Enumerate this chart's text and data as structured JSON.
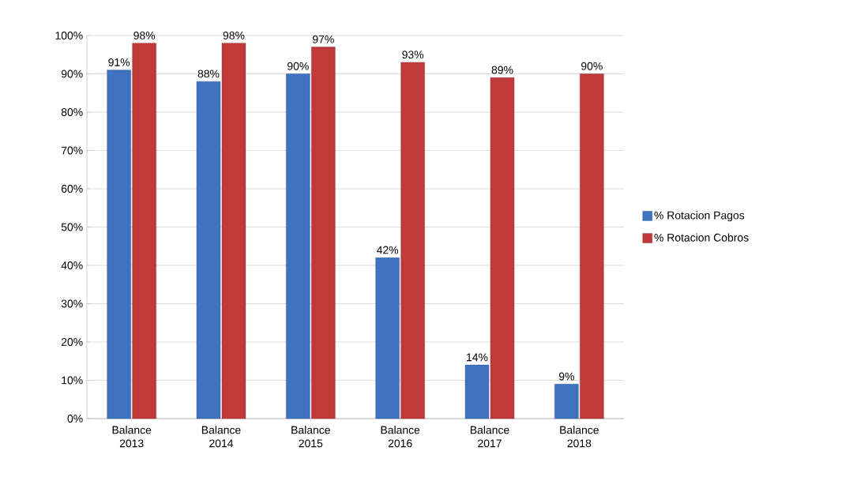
{
  "chart_data": {
    "type": "bar",
    "categories": [
      "Balance 2013",
      "Balance 2014",
      "Balance 2015",
      "Balance 2016",
      "Balance 2017",
      "Balance 2018"
    ],
    "series": [
      {
        "name": "% Rotacion  Pagos",
        "color": "#3f73c0",
        "values": [
          91,
          88,
          90,
          42,
          14,
          9
        ],
        "value_labels": [
          "91%",
          "88%",
          "90%",
          "42%",
          "14%",
          "9%"
        ]
      },
      {
        "name": "% Rotacion Cobros",
        "color": "#c0393b",
        "values": [
          98,
          98,
          97,
          93,
          89,
          90
        ],
        "value_labels": [
          "98%",
          "98%",
          "97%",
          "93%",
          "89%",
          "90%"
        ]
      }
    ],
    "ylim": [
      0,
      100
    ],
    "yticks": [
      {
        "value": 0,
        "label": "0%"
      },
      {
        "value": 10,
        "label": "10%"
      },
      {
        "value": 20,
        "label": "20%"
      },
      {
        "value": 30,
        "label": "30%"
      },
      {
        "value": 40,
        "label": "40%"
      },
      {
        "value": 50,
        "label": "50%"
      },
      {
        "value": 60,
        "label": "60%"
      },
      {
        "value": 70,
        "label": "70%"
      },
      {
        "value": 80,
        "label": "80%"
      },
      {
        "value": 90,
        "label": "90%"
      },
      {
        "value": 100,
        "label": "100%"
      }
    ],
    "grid": "y",
    "legend": "right"
  }
}
